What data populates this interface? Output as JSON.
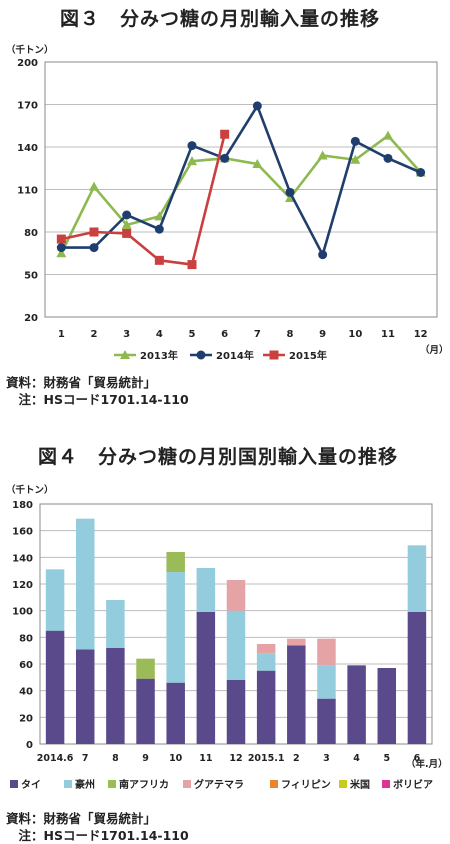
{
  "chart_data": [
    {
      "type": "line",
      "title": "図３　分みつ糖の月別輸入量の推移",
      "unit_label": "（千トン）",
      "x_unit": "（月）",
      "x": [
        "1",
        "2",
        "3",
        "4",
        "5",
        "6",
        "7",
        "8",
        "9",
        "10",
        "11",
        "12"
      ],
      "ylim": [
        20,
        200
      ],
      "yticks": [
        20,
        50,
        80,
        110,
        140,
        170,
        200
      ],
      "grid": true,
      "legend": "bottom",
      "series": [
        {
          "name": "2013年",
          "marker": "triangle",
          "color": "#8DB94E",
          "values": [
            65,
            112,
            85,
            91,
            130,
            132,
            128,
            104,
            134,
            131,
            148,
            122
          ]
        },
        {
          "name": "2014年",
          "marker": "circle",
          "color": "#1F3E6E",
          "values": [
            69,
            69,
            92,
            82,
            141,
            132,
            169,
            108,
            64,
            144,
            132,
            122
          ]
        },
        {
          "name": "2015年",
          "marker": "square",
          "color": "#C9403E",
          "values": [
            75,
            80,
            79,
            60,
            57,
            149,
            null,
            null,
            null,
            null,
            null,
            null
          ]
        }
      ],
      "notes": [
        "資料：財務省「貿易統計」",
        "　注：HSコード1701.14-110"
      ]
    },
    {
      "type": "bar",
      "stacked": true,
      "title": "図４　分みつ糖の月別国別輸入量の推移",
      "unit_label": "（千トン）",
      "x_unit": "（年.月）",
      "categories": [
        "2014.6",
        "7",
        "8",
        "9",
        "10",
        "11",
        "12",
        "2015.1",
        "2",
        "3",
        "4",
        "5",
        "6"
      ],
      "ylim": [
        0,
        180
      ],
      "yticks": [
        0,
        20,
        40,
        60,
        80,
        100,
        120,
        140,
        160,
        180
      ],
      "grid": true,
      "legend": "bottom",
      "series": [
        {
          "name": "タイ",
          "color": "#5B4A8B",
          "values": [
            85,
            71,
            72,
            49,
            46,
            99,
            48,
            55,
            74,
            34,
            59,
            57,
            99
          ]
        },
        {
          "name": "豪州",
          "color": "#93CDDD",
          "values": [
            46,
            98,
            36,
            0,
            83,
            33,
            52,
            13,
            0,
            25,
            0,
            0,
            50
          ]
        },
        {
          "name": "南アフリカ",
          "color": "#9BBB59",
          "values": [
            0,
            0,
            0,
            15,
            15,
            0,
            0,
            0,
            0,
            0,
            0,
            0,
            0
          ]
        },
        {
          "name": "グアテマラ",
          "color": "#E6A3A6",
          "values": [
            0,
            0,
            0,
            0,
            0,
            0,
            23,
            7,
            5,
            20,
            0,
            0,
            0
          ]
        },
        {
          "name": "フィリピン",
          "color": "#E8872E",
          "values": [
            0,
            0,
            0,
            0,
            0,
            0,
            0,
            0,
            0,
            0,
            0,
            0,
            0
          ]
        },
        {
          "name": "米国",
          "color": "#C9CC1F",
          "values": [
            0,
            0,
            0,
            0,
            0,
            0,
            0,
            0,
            0,
            0,
            0,
            0,
            0
          ]
        },
        {
          "name": "ボリビア",
          "color": "#D63696",
          "values": [
            0,
            0,
            0,
            0,
            0,
            0,
            0,
            0,
            0,
            0,
            0,
            0,
            0
          ]
        }
      ],
      "notes": [
        "資料：財務省「貿易統計」",
        "　注：HSコード1701.14-110"
      ]
    }
  ]
}
